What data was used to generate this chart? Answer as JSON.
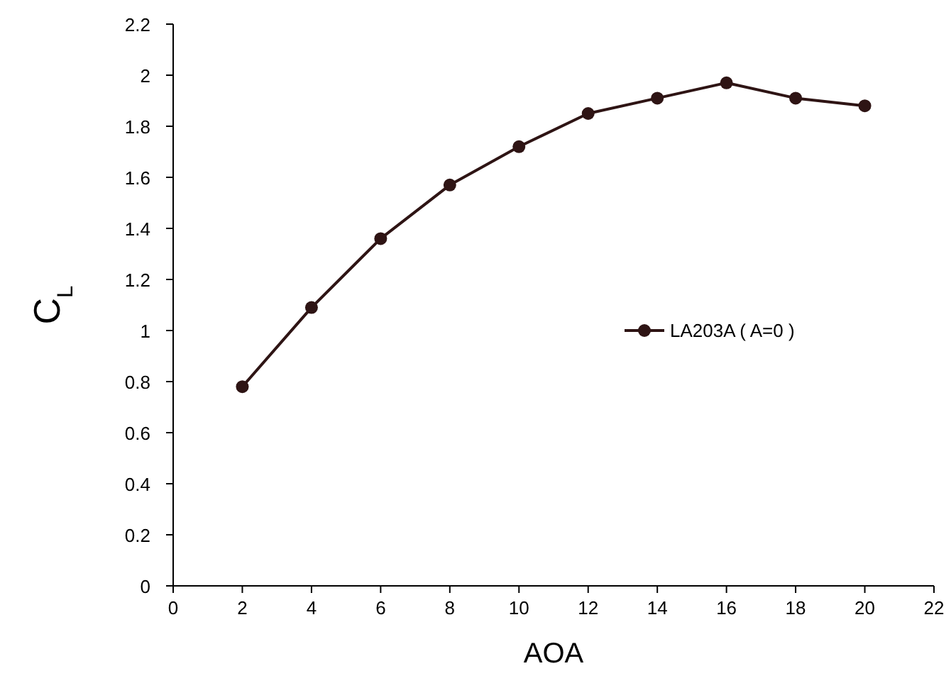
{
  "chart_data": {
    "type": "line",
    "xlabel": "AOA",
    "ylabel": "C$_{L}$",
    "x": [
      2,
      4,
      6,
      8,
      10,
      12,
      14,
      16,
      18,
      20
    ],
    "series": [
      {
        "name": "LA203A ( A=0 )",
        "color": "#2e1414",
        "values": [
          0.78,
          1.09,
          1.36,
          1.57,
          1.72,
          1.85,
          1.91,
          1.97,
          1.91,
          1.88
        ]
      }
    ],
    "xlim": [
      0,
      22
    ],
    "xticks": [
      0,
      2,
      4,
      6,
      8,
      10,
      12,
      14,
      16,
      18,
      20,
      22
    ],
    "ylim": [
      0,
      2.2
    ],
    "yticks": [
      0,
      0.2,
      0.4,
      0.6,
      0.8,
      1,
      1.2,
      1.4,
      1.6,
      1.8,
      2,
      2.2
    ],
    "grid": false,
    "legend": "right",
    "marker": "circle",
    "line_style": "solid"
  }
}
